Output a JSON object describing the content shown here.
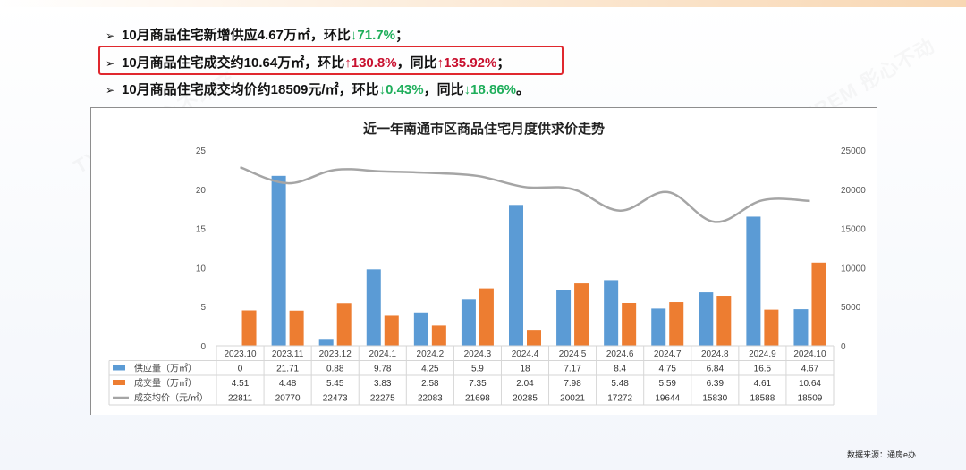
{
  "bullets": [
    {
      "parts": [
        {
          "text": "10月商品住宅新增供应4.67万㎡，环比",
          "cls": ""
        },
        {
          "text": "↓71.7%",
          "cls": "green"
        },
        {
          "text": "；",
          "cls": ""
        }
      ]
    },
    {
      "parts": [
        {
          "text": "10月商品住宅成交约10.64万㎡，环比",
          "cls": ""
        },
        {
          "text": "↑130.8%",
          "cls": "red"
        },
        {
          "text": "，同比",
          "cls": ""
        },
        {
          "text": "↑135.92%",
          "cls": "red"
        },
        {
          "text": "；",
          "cls": ""
        }
      ]
    },
    {
      "parts": [
        {
          "text": "10月商品住宅成交均价约18509元/㎡，环比",
          "cls": ""
        },
        {
          "text": "↓0.43%",
          "cls": "green"
        },
        {
          "text": "，同比",
          "cls": ""
        },
        {
          "text": "↓18.86%",
          "cls": "green"
        },
        {
          "text": "。",
          "cls": ""
        }
      ]
    }
  ],
  "bullet_mark": "➢",
  "source_text": "数据来源：通房e办",
  "watermark_text": "TXREM 彤心不动产",
  "colors": {
    "supply": "#5b9bd5",
    "deal": "#ed7d31",
    "price": "#a5a5a5",
    "highlight": "#e0282e"
  },
  "chart_data": {
    "type": "bar",
    "title": "近一年南通市区商品住宅月度供求价走势",
    "categories": [
      "2023.10",
      "2023.11",
      "2023.12",
      "2024.1",
      "2024.2",
      "2024.3",
      "2024.4",
      "2024.5",
      "2024.6",
      "2024.7",
      "2024.8",
      "2024.9",
      "2024.10"
    ],
    "series": [
      {
        "name": "供应量（万㎡）",
        "type": "bar",
        "axis": "left",
        "color": "#5b9bd5",
        "values": [
          0,
          21.71,
          0.88,
          9.78,
          4.25,
          5.9,
          18,
          7.17,
          8.4,
          4.75,
          6.84,
          16.5,
          4.67
        ]
      },
      {
        "name": "成交量（万㎡）",
        "type": "bar",
        "axis": "left",
        "color": "#ed7d31",
        "values": [
          4.51,
          4.48,
          5.45,
          3.83,
          2.58,
          7.35,
          2.04,
          7.98,
          5.48,
          5.59,
          6.39,
          4.61,
          10.64
        ]
      },
      {
        "name": "成交均价（元/㎡）",
        "type": "line",
        "axis": "right",
        "color": "#a5a5a5",
        "values": [
          22811,
          20770,
          22473,
          22275,
          22083,
          21698,
          20285,
          20021,
          17272,
          19644,
          15830,
          18588,
          18509
        ]
      }
    ],
    "y_left": {
      "min": 0,
      "max": 25,
      "ticks": [
        0,
        5,
        10,
        15,
        20,
        25
      ]
    },
    "y_right": {
      "min": 0,
      "max": 25000,
      "ticks": [
        0,
        5000,
        10000,
        15000,
        20000,
        25000
      ]
    },
    "legend": "data-table-below",
    "grid": false
  }
}
